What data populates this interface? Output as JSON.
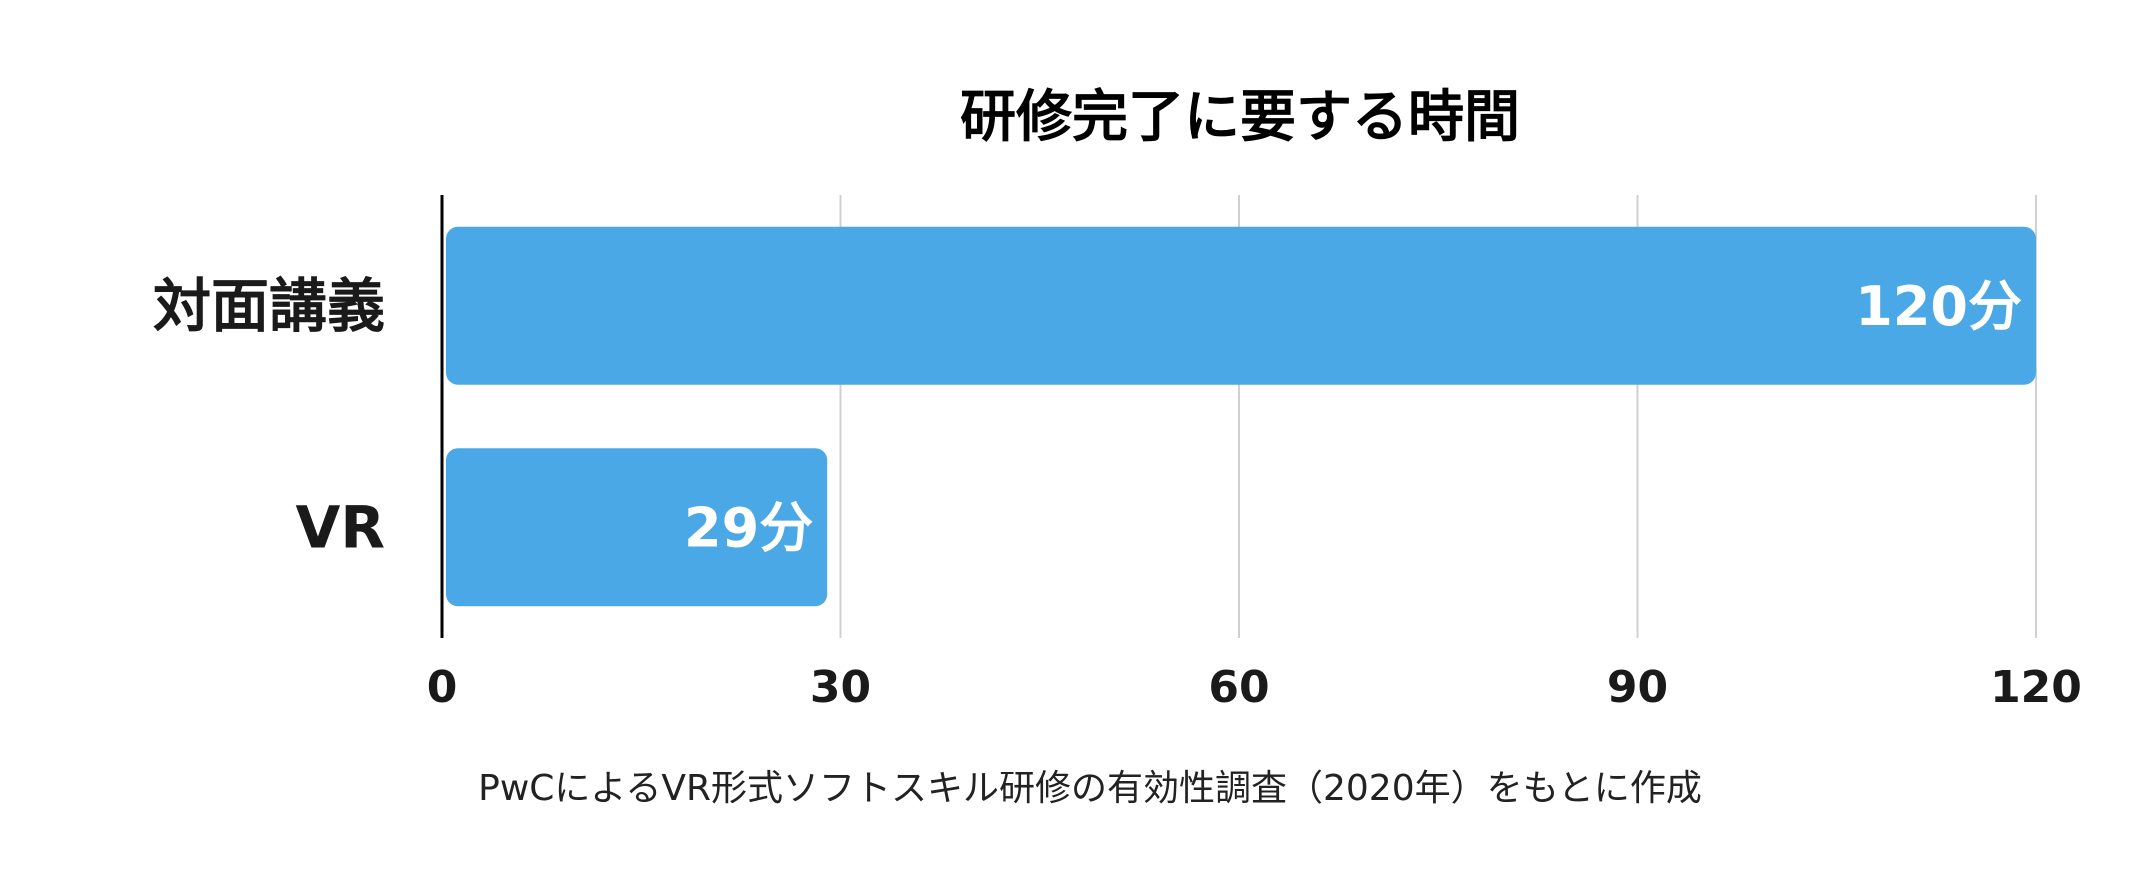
{
  "chart_data": {
    "type": "bar",
    "orientation": "horizontal",
    "title": "研修完了に要する時間",
    "categories": [
      "対面講義",
      "VR"
    ],
    "values": [
      120,
      29
    ],
    "value_labels": [
      "120分",
      "29分"
    ],
    "xlim": [
      0,
      120
    ],
    "xticks": [
      "0",
      "30",
      "60",
      "90",
      "120"
    ],
    "grid": true,
    "bar_color": "#4aa8e6",
    "caption": "PwCによるVR形式ソフトスキル研修の有効性調査（2020年）をもとに作成"
  }
}
